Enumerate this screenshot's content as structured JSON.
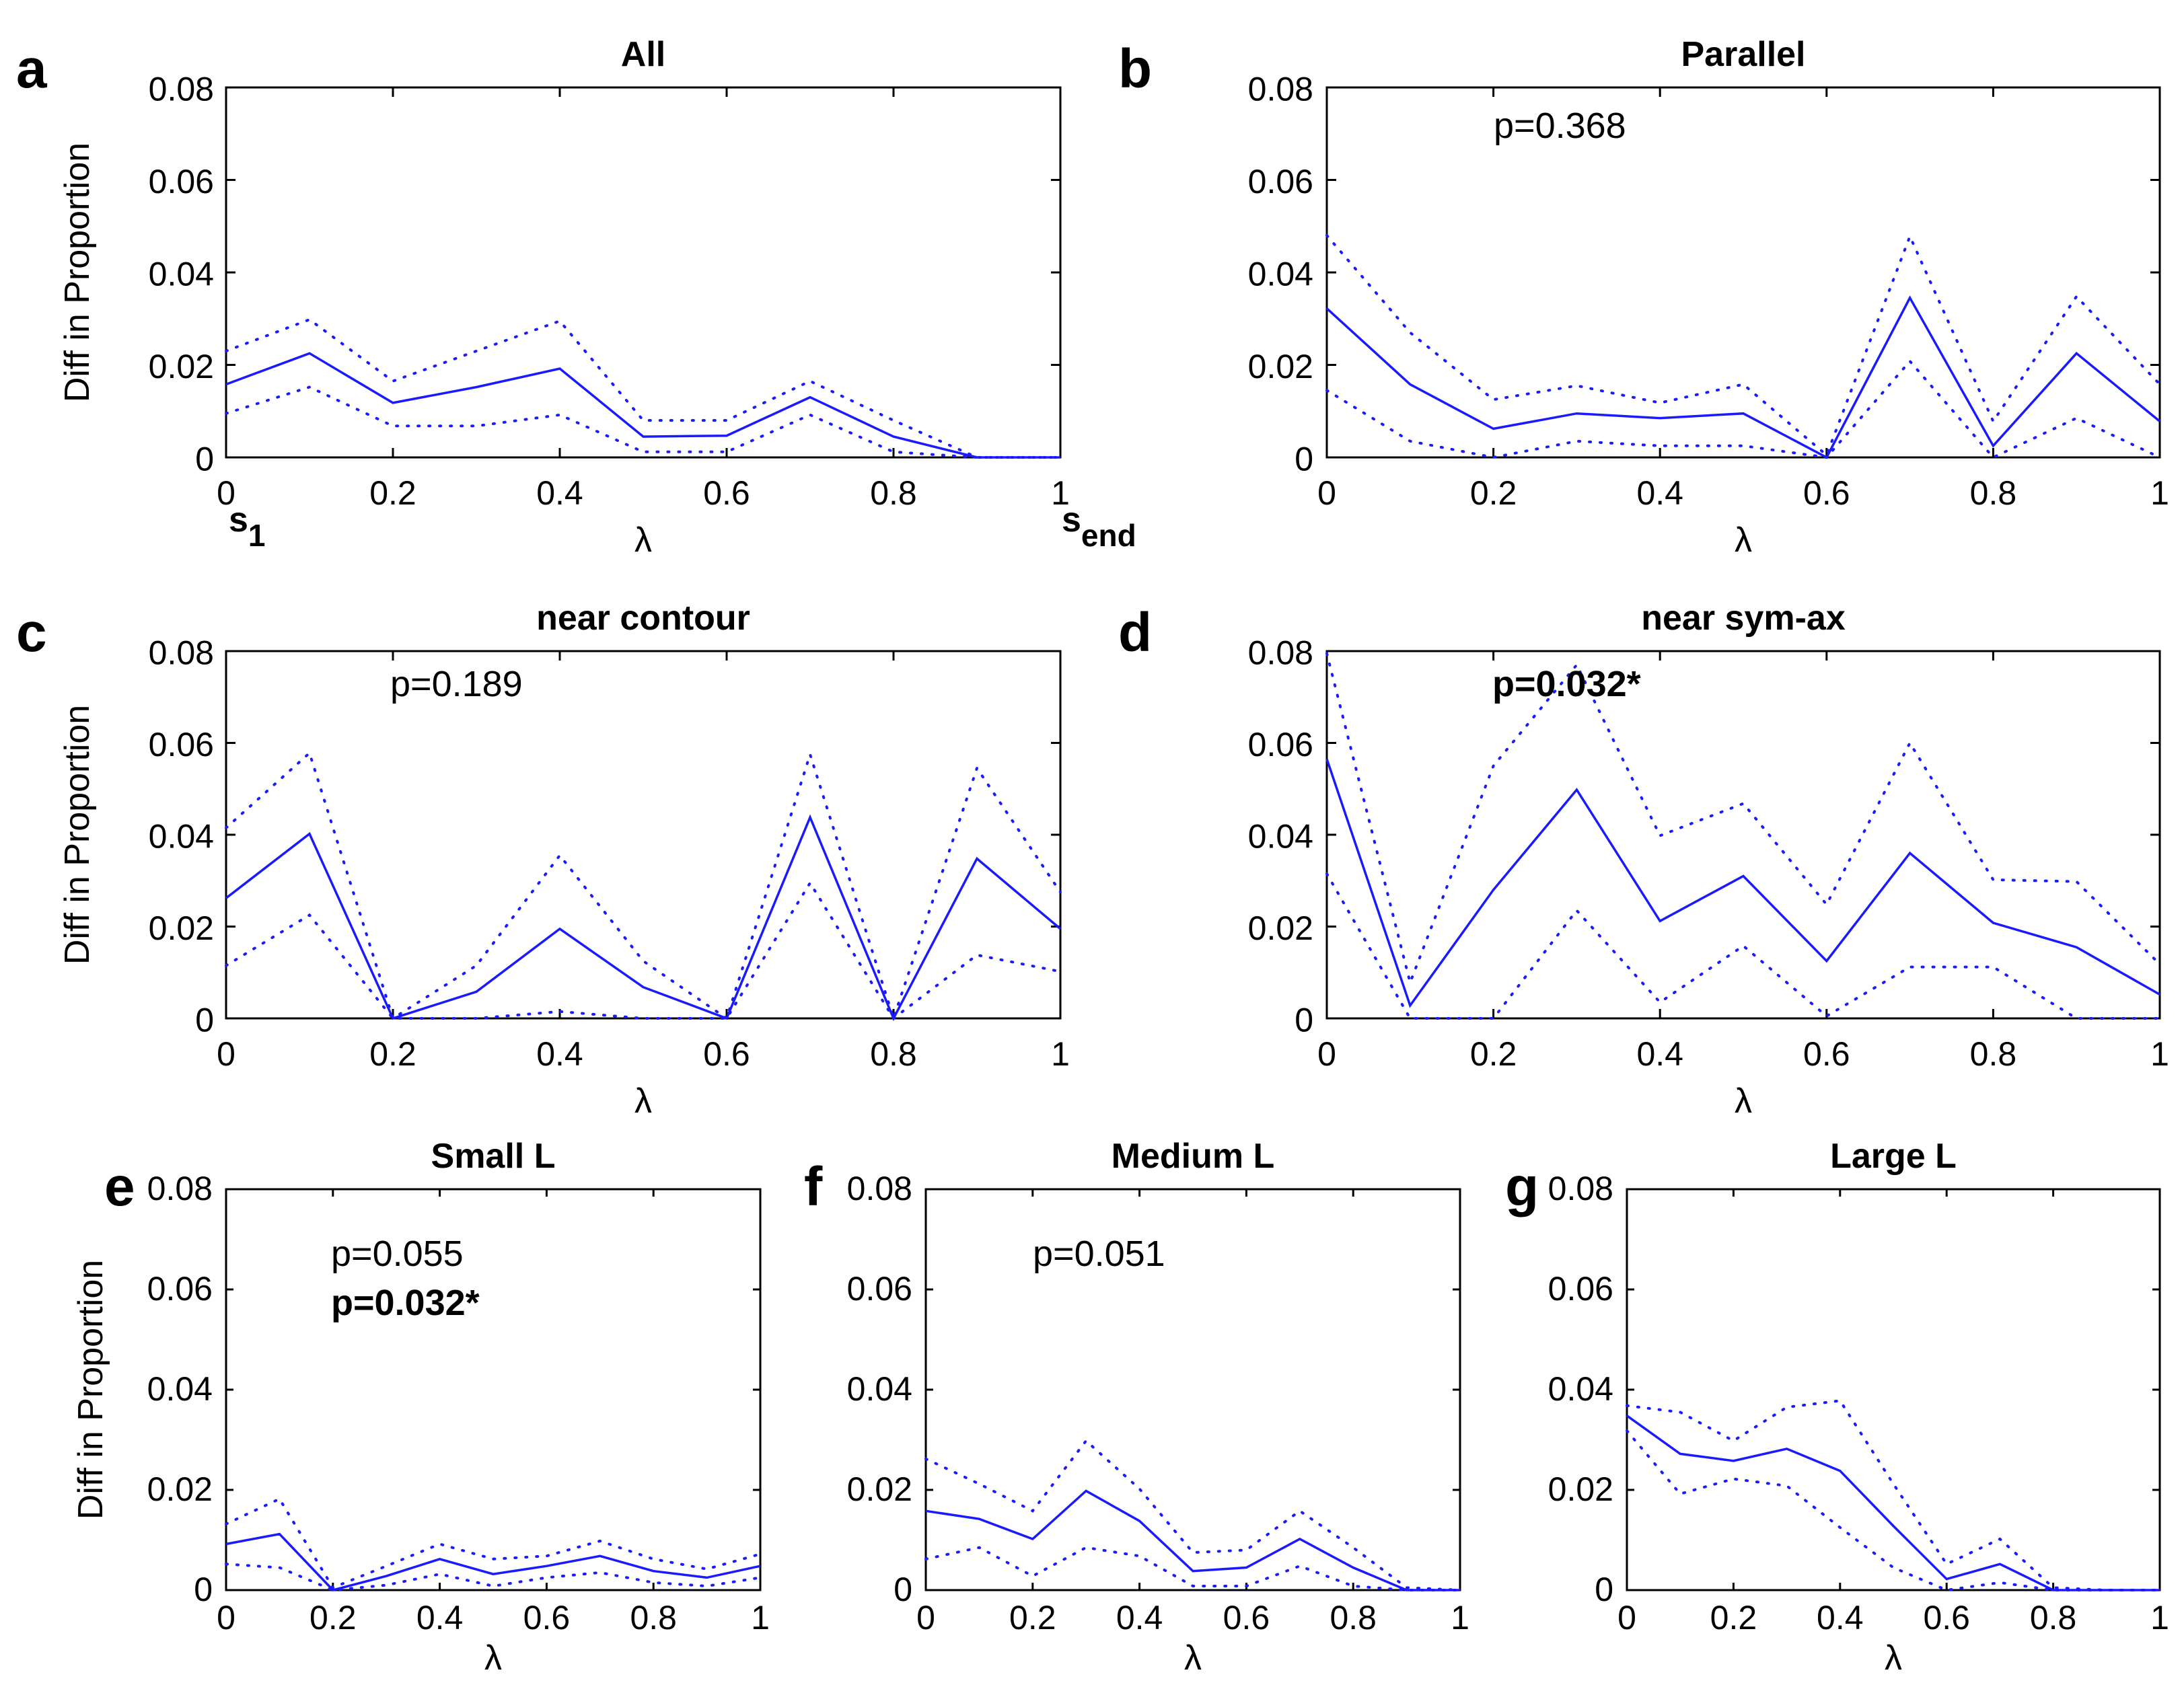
{
  "figure": {
    "line_color": "#1a1aff"
  },
  "chart_data": [
    {
      "panel": "a",
      "type": "line",
      "title": "All",
      "xlabel": "λ",
      "ylabel": "Diff in Proportion",
      "xlim": [
        0,
        1
      ],
      "ylim": [
        0,
        0.08
      ],
      "xticks": [
        "0",
        "0.2",
        "0.4",
        "0.6",
        "0.8",
        "1"
      ],
      "yticks": [
        "0",
        "0.02",
        "0.04",
        "0.06",
        "0.08"
      ],
      "annotations": [],
      "x_endpoint_labels": [
        {
          "base": "s",
          "sub": "1"
        },
        {
          "base": "s",
          "sub": "end"
        }
      ],
      "x": [
        0,
        0.1,
        0.2,
        0.3,
        0.4,
        0.5,
        0.6,
        0.7,
        0.8,
        0.9,
        1
      ],
      "series": [
        {
          "style": "solid",
          "values": [
            0.0158,
            0.0225,
            0.0118,
            0.0152,
            0.0192,
            0.0045,
            0.0047,
            0.013,
            0.0045,
            0,
            0
          ]
        },
        {
          "style": "dotted",
          "values": [
            0.023,
            0.0298,
            0.0165,
            0.023,
            0.0295,
            0.008,
            0.008,
            0.0165,
            0.008,
            0,
            0
          ]
        },
        {
          "style": "dotted",
          "values": [
            0.0095,
            0.0152,
            0.0068,
            0.0068,
            0.0092,
            0.0012,
            0.0012,
            0.0092,
            0.0012,
            0,
            0
          ]
        }
      ]
    },
    {
      "panel": "b",
      "type": "line",
      "title": "Parallel",
      "xlabel": "λ",
      "ylabel": "",
      "xlim": [
        0,
        1
      ],
      "ylim": [
        0,
        0.08
      ],
      "xticks": [
        "0",
        "0.2",
        "0.4",
        "0.6",
        "0.8",
        "1"
      ],
      "yticks": [
        "0",
        "0.02",
        "0.04",
        "0.06",
        "0.08"
      ],
      "annotations": [
        {
          "text": "p=0.368",
          "bold": false
        }
      ],
      "x": [
        0,
        0.1,
        0.2,
        0.3,
        0.4,
        0.5,
        0.6,
        0.7,
        0.8,
        0.9,
        1
      ],
      "series": [
        {
          "style": "solid",
          "values": [
            0.0322,
            0.0158,
            0.0062,
            0.0095,
            0.0085,
            0.0095,
            0,
            0.0345,
            0.0025,
            0.0225,
            0.0078
          ]
        },
        {
          "style": "dotted",
          "values": [
            0.048,
            0.027,
            0.0125,
            0.0155,
            0.0118,
            0.0158,
            0.0005,
            0.0478,
            0.0078,
            0.0348,
            0.0158
          ]
        },
        {
          "style": "dotted",
          "values": [
            0.0145,
            0.0035,
            0,
            0.0035,
            0.0025,
            0.0025,
            0,
            0.0208,
            0,
            0.0085,
            0
          ]
        }
      ]
    },
    {
      "panel": "c",
      "type": "line",
      "title": "near contour",
      "xlabel": "λ",
      "ylabel": "Diff in Proportion",
      "xlim": [
        0,
        1
      ],
      "ylim": [
        0,
        0.08
      ],
      "xticks": [
        "0",
        "0.2",
        "0.4",
        "0.6",
        "0.8",
        "1"
      ],
      "yticks": [
        "0",
        "0.02",
        "0.04",
        "0.06",
        "0.08"
      ],
      "annotations": [
        {
          "text": "p=0.189",
          "bold": false
        }
      ],
      "x": [
        0,
        0.1,
        0.2,
        0.3,
        0.4,
        0.5,
        0.6,
        0.7,
        0.8,
        0.9,
        1
      ],
      "series": [
        {
          "style": "solid",
          "values": [
            0.0262,
            0.0402,
            0,
            0.0058,
            0.0195,
            0.0068,
            0,
            0.0438,
            0,
            0.0348,
            0.0195
          ]
        },
        {
          "style": "dotted",
          "values": [
            0.0415,
            0.0578,
            0,
            0.0115,
            0.0355,
            0.0125,
            0,
            0.0575,
            0,
            0.0545,
            0.0275
          ]
        },
        {
          "style": "dotted",
          "values": [
            0.0115,
            0.0225,
            0,
            0,
            0.0015,
            0,
            0,
            0.0295,
            0,
            0.0138,
            0.0102
          ]
        }
      ]
    },
    {
      "panel": "d",
      "type": "line",
      "title": "near sym-ax",
      "xlabel": "λ",
      "ylabel": "",
      "xlim": [
        0,
        1
      ],
      "ylim": [
        0,
        0.08
      ],
      "xticks": [
        "0",
        "0.2",
        "0.4",
        "0.6",
        "0.8",
        "1"
      ],
      "yticks": [
        "0",
        "0.02",
        "0.04",
        "0.06",
        "0.08"
      ],
      "annotations": [
        {
          "text": "p=0.032*",
          "bold": true
        }
      ],
      "x": [
        0,
        0.1,
        0.2,
        0.3,
        0.4,
        0.5,
        0.6,
        0.7,
        0.8,
        0.9,
        1
      ],
      "series": [
        {
          "style": "solid",
          "values": [
            0.0565,
            0.0028,
            0.028,
            0.0498,
            0.0212,
            0.031,
            0.0125,
            0.036,
            0.0208,
            0.0155,
            0.0052
          ]
        },
        {
          "style": "dotted",
          "values": [
            0.0795,
            0.0078,
            0.055,
            0.077,
            0.0398,
            0.0468,
            0.0248,
            0.06,
            0.0302,
            0.0298,
            0.0118
          ]
        },
        {
          "style": "dotted",
          "values": [
            0.0315,
            0,
            0,
            0.0235,
            0.0035,
            0.0158,
            0.0005,
            0.0112,
            0.0112,
            0,
            0
          ]
        }
      ]
    },
    {
      "panel": "e",
      "type": "line",
      "title": "Small L",
      "xlabel": "λ",
      "ylabel": "Diff in Proportion",
      "xlim": [
        0,
        1
      ],
      "ylim": [
        0,
        0.08
      ],
      "xticks": [
        "0",
        "0.2",
        "0.4",
        "0.6",
        "0.8",
        "1"
      ],
      "yticks": [
        "0",
        "0.02",
        "0.04",
        "0.06",
        "0.08"
      ],
      "annotations": [
        {
          "text": "p=0.055",
          "bold": false
        },
        {
          "text": "p=0.032*",
          "bold": true
        }
      ],
      "x": [
        0,
        0.1,
        0.2,
        0.3,
        0.4,
        0.5,
        0.6,
        0.7,
        0.8,
        0.9,
        1
      ],
      "series": [
        {
          "style": "solid",
          "values": [
            0.0092,
            0.0112,
            0,
            0.0028,
            0.0062,
            0.0032,
            0.0048,
            0.0068,
            0.0038,
            0.0025,
            0.0048
          ]
        },
        {
          "style": "dotted",
          "values": [
            0.0132,
            0.0182,
            0.0005,
            0.0048,
            0.0092,
            0.0062,
            0.0068,
            0.0098,
            0.0062,
            0.0042,
            0.0072
          ]
        },
        {
          "style": "dotted",
          "values": [
            0.0052,
            0.0045,
            0,
            0.001,
            0.0032,
            0.0008,
            0.0025,
            0.0035,
            0.0015,
            0.0008,
            0.0025
          ]
        }
      ]
    },
    {
      "panel": "f",
      "type": "line",
      "title": "Medium L",
      "xlabel": "λ",
      "ylabel": "",
      "xlim": [
        0,
        1
      ],
      "ylim": [
        0,
        0.08
      ],
      "xticks": [
        "0",
        "0.2",
        "0.4",
        "0.6",
        "0.8",
        "1"
      ],
      "yticks": [
        "0",
        "0.02",
        "0.04",
        "0.06",
        "0.08"
      ],
      "annotations": [
        {
          "text": "p=0.051",
          "bold": false
        }
      ],
      "x": [
        0,
        0.1,
        0.2,
        0.3,
        0.4,
        0.5,
        0.6,
        0.7,
        0.8,
        0.9,
        1
      ],
      "series": [
        {
          "style": "solid",
          "values": [
            0.0158,
            0.0142,
            0.0102,
            0.0198,
            0.0138,
            0.0038,
            0.0045,
            0.0102,
            0.0045,
            0,
            0
          ]
        },
        {
          "style": "dotted",
          "values": [
            0.0262,
            0.0212,
            0.0158,
            0.0298,
            0.0202,
            0.0075,
            0.008,
            0.0158,
            0.0085,
            0.0005,
            0
          ]
        },
        {
          "style": "dotted",
          "values": [
            0.0062,
            0.0085,
            0.0028,
            0.0085,
            0.0068,
            0.0008,
            0.0008,
            0.0048,
            0.0008,
            0,
            0
          ]
        }
      ]
    },
    {
      "panel": "g",
      "type": "line",
      "title": "Large L",
      "xlabel": "λ",
      "ylabel": "",
      "xlim": [
        0,
        1
      ],
      "ylim": [
        0,
        0.08
      ],
      "xticks": [
        "0",
        "0.2",
        "0.4",
        "0.6",
        "0.8",
        "1"
      ],
      "yticks": [
        "0",
        "0.02",
        "0.04",
        "0.06",
        "0.08"
      ],
      "annotations": [],
      "x": [
        0,
        0.1,
        0.2,
        0.3,
        0.4,
        0.5,
        0.6,
        0.7,
        0.8,
        0.9,
        1
      ],
      "series": [
        {
          "style": "solid",
          "values": [
            0.0348,
            0.0272,
            0.0258,
            0.0282,
            0.0238,
            0.0128,
            0.0022,
            0.0052,
            0,
            0,
            0
          ]
        },
        {
          "style": "dotted",
          "values": [
            0.0368,
            0.0355,
            0.0298,
            0.0365,
            0.0378,
            0.0212,
            0.0052,
            0.0102,
            0.0005,
            0,
            0
          ]
        },
        {
          "style": "dotted",
          "values": [
            0.0318,
            0.0192,
            0.0222,
            0.0208,
            0.0125,
            0.0045,
            0,
            0.0015,
            0,
            0,
            0
          ]
        }
      ]
    }
  ]
}
